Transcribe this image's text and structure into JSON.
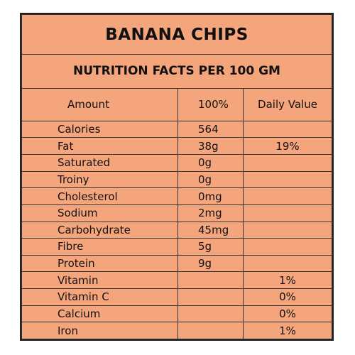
{
  "title": "BANANA CHIPS",
  "subtitle": "NUTRITION FACTS PER 100 GM",
  "table": {
    "header": [
      "Amount",
      "100%",
      "Daily Value"
    ],
    "rows": [
      {
        "name": "Calories",
        "amount": "564"
      },
      {
        "name": "Fat",
        "amount": "38g",
        "daily_value": "19%"
      },
      {
        "name": "Saturated",
        "amount": "0g"
      },
      {
        "name": "Troiny",
        "amount": "0g"
      },
      {
        "name": "Cholesterol",
        "amount": "0mg"
      },
      {
        "name": "Sodium",
        "amount": "2mg"
      },
      {
        "name": "Carbohydrate",
        "amount": "45mg"
      },
      {
        "name": "Fibre",
        "amount": "5g"
      },
      {
        "name": "Protein",
        "amount": "9g"
      },
      {
        "name": "Vitamin",
        "daily_value": "1%"
      },
      {
        "name": "Vitamin C",
        "daily_value": "0%"
      },
      {
        "name": "Calcium",
        "daily_value": "0%"
      },
      {
        "name": "Iron",
        "daily_value": "1%"
      }
    ]
  }
}
